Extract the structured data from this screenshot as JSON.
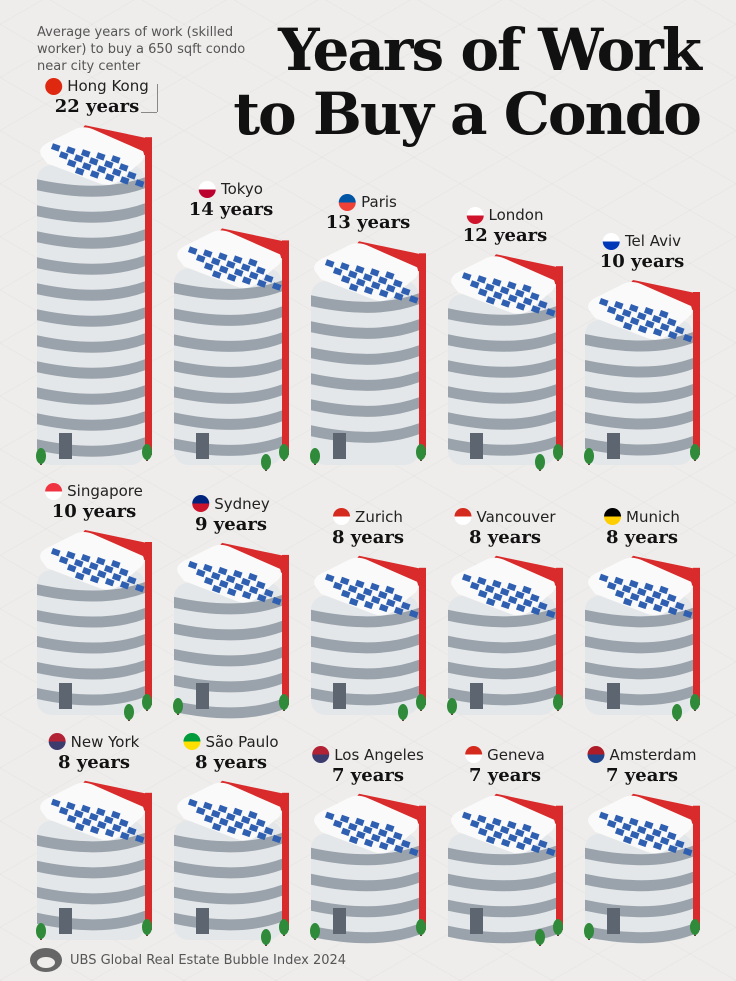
{
  "title_line1": "Years of Work",
  "title_line2": "to Buy a Condo",
  "subtitle": "Average years of work (skilled worker) to buy a 650 sqft condo near city center",
  "source": "UBS Global Real Estate Bubble Index 2024",
  "colors": {
    "accent_red": "#d92b2b",
    "window_blue": "#2f5fb0",
    "stripe_light": "#e4e7ea",
    "stripe_dark": "#9aa3ab",
    "tree_green": "#2f8a3a"
  },
  "chart_data": {
    "type": "bar",
    "title": "Years of Work to Buy a Condo",
    "unit_suffix": "years",
    "categories": [
      "Hong Kong",
      "Tokyo",
      "Paris",
      "London",
      "Tel Aviv",
      "Singapore",
      "Sydney",
      "Zurich",
      "Vancouver",
      "Munich",
      "New York",
      "São Paulo",
      "Los Angeles",
      "Geneva",
      "Amsterdam"
    ],
    "values": [
      22,
      14,
      13,
      12,
      10,
      10,
      9,
      8,
      8,
      8,
      8,
      8,
      7,
      7,
      7
    ],
    "labels": [
      "22 years",
      "14 years",
      "13 years",
      "12 years",
      "10 years",
      "10 years",
      "9 years",
      "8 years",
      "8 years",
      "8 years",
      "8 years",
      "8 years",
      "7 years",
      "7 years",
      "7 years"
    ],
    "flags": [
      [
        "#de2910",
        "#de2910"
      ],
      [
        "#ffffff",
        "#bc002d"
      ],
      [
        "#0055a4",
        "#ef4135"
      ],
      [
        "#ffffff",
        "#cf142b"
      ],
      [
        "#ffffff",
        "#0038b8"
      ],
      [
        "#ef3340",
        "#ffffff"
      ],
      [
        "#00247d",
        "#cc142b"
      ],
      [
        "#d52b1e",
        "#ffffff"
      ],
      [
        "#d52b1e",
        "#ffffff"
      ],
      [
        "#000000",
        "#ffce00"
      ],
      [
        "#b22234",
        "#3c3b6e"
      ],
      [
        "#009c3b",
        "#ffdf00"
      ],
      [
        "#b22234",
        "#3c3b6e"
      ],
      [
        "#d52b1e",
        "#ffffff"
      ],
      [
        "#ae1c28",
        "#21468b"
      ]
    ]
  }
}
